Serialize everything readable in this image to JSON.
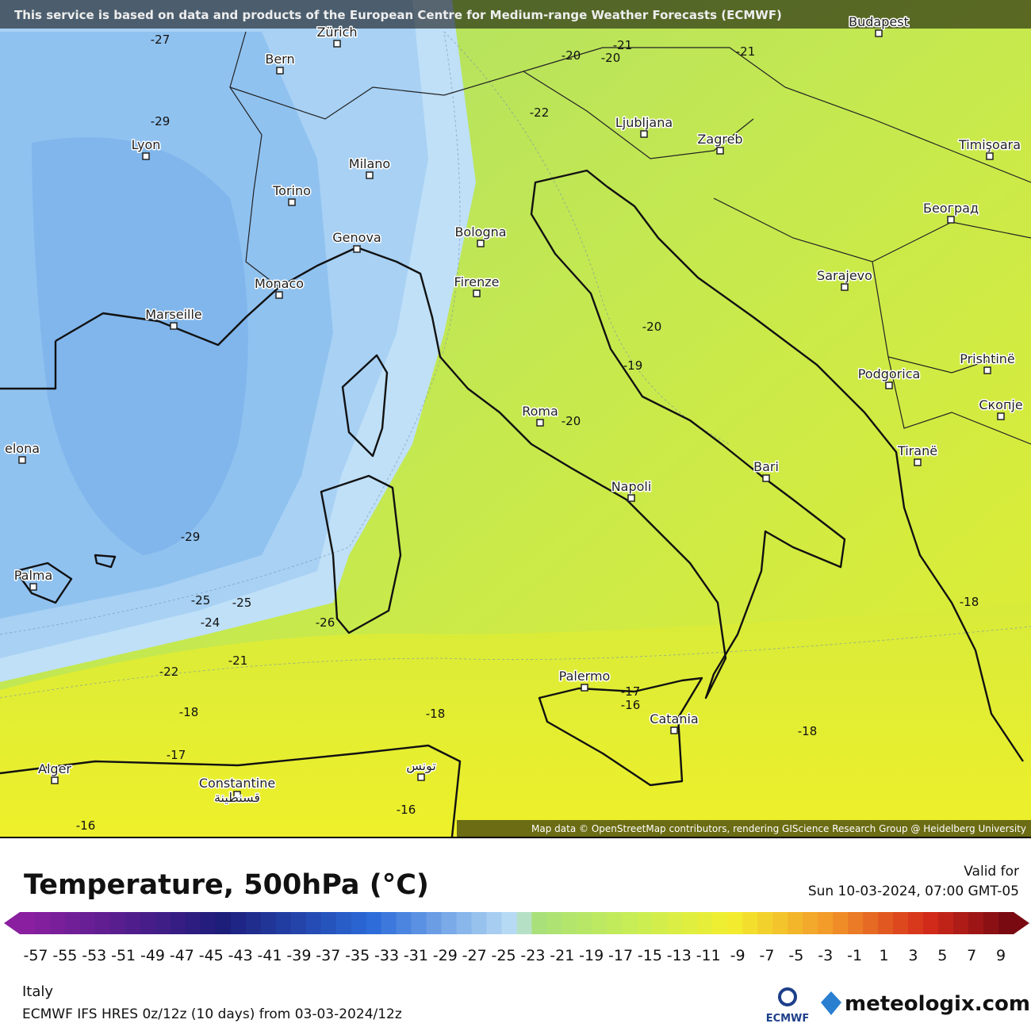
{
  "header": {
    "attribution": "This service is based on data and products of the European Centre for Medium-range Weather Forecasts (ECMWF)"
  },
  "map": {
    "cities": [
      "Zürich",
      "Bern",
      "Lyon",
      "Milano",
      "Torino",
      "Genova",
      "Monaco",
      "Marseille",
      "Bologna",
      "Firenze",
      "Ljubljana",
      "Zagreb",
      "Budapest",
      "Timişoara",
      "Београд",
      "Sarajevo",
      "Podgorica",
      "Prishtinë",
      "Скопје",
      "Tiranë",
      "Roma",
      "Napoli",
      "Bari",
      "Palermo",
      "Catania",
      "Alger",
      "Constantine",
      "قسنطينة",
      "تونس",
      "Palma",
      "elona"
    ],
    "contour_labels": [
      -27,
      -29,
      -21,
      -20,
      -20,
      -21,
      -22,
      -20,
      -19,
      -20,
      -29,
      -25,
      -25,
      -24,
      -26,
      -21,
      -22,
      -18,
      -18,
      -17,
      -17,
      -16,
      -18,
      -18,
      -16,
      -16
    ],
    "credit": "Map data © OpenStreetMap contributors, rendering GIScience Research Group @ Heidelberg University"
  },
  "legend": {
    "title": "Temperature, 500hPa (°C)",
    "valid_label": "Valid for",
    "valid_time": "Sun 10-03-2024, 07:00 GMT-05",
    "ticks": [
      -57,
      -55,
      -53,
      -51,
      -49,
      -47,
      -45,
      -43,
      -41,
      -39,
      -37,
      -35,
      -33,
      -31,
      -29,
      -27,
      -25,
      -23,
      -21,
      -19,
      -17,
      -15,
      -13,
      -11,
      -9,
      -7,
      -5,
      -3,
      -1,
      1,
      3,
      5,
      7,
      9
    ]
  },
  "footer": {
    "region": "Italy",
    "model": "ECMWF IFS HRES 0z/12z (10 days) from 03-03-2024/12z",
    "logos": [
      "ECMWF",
      "meteologix.com"
    ]
  }
}
